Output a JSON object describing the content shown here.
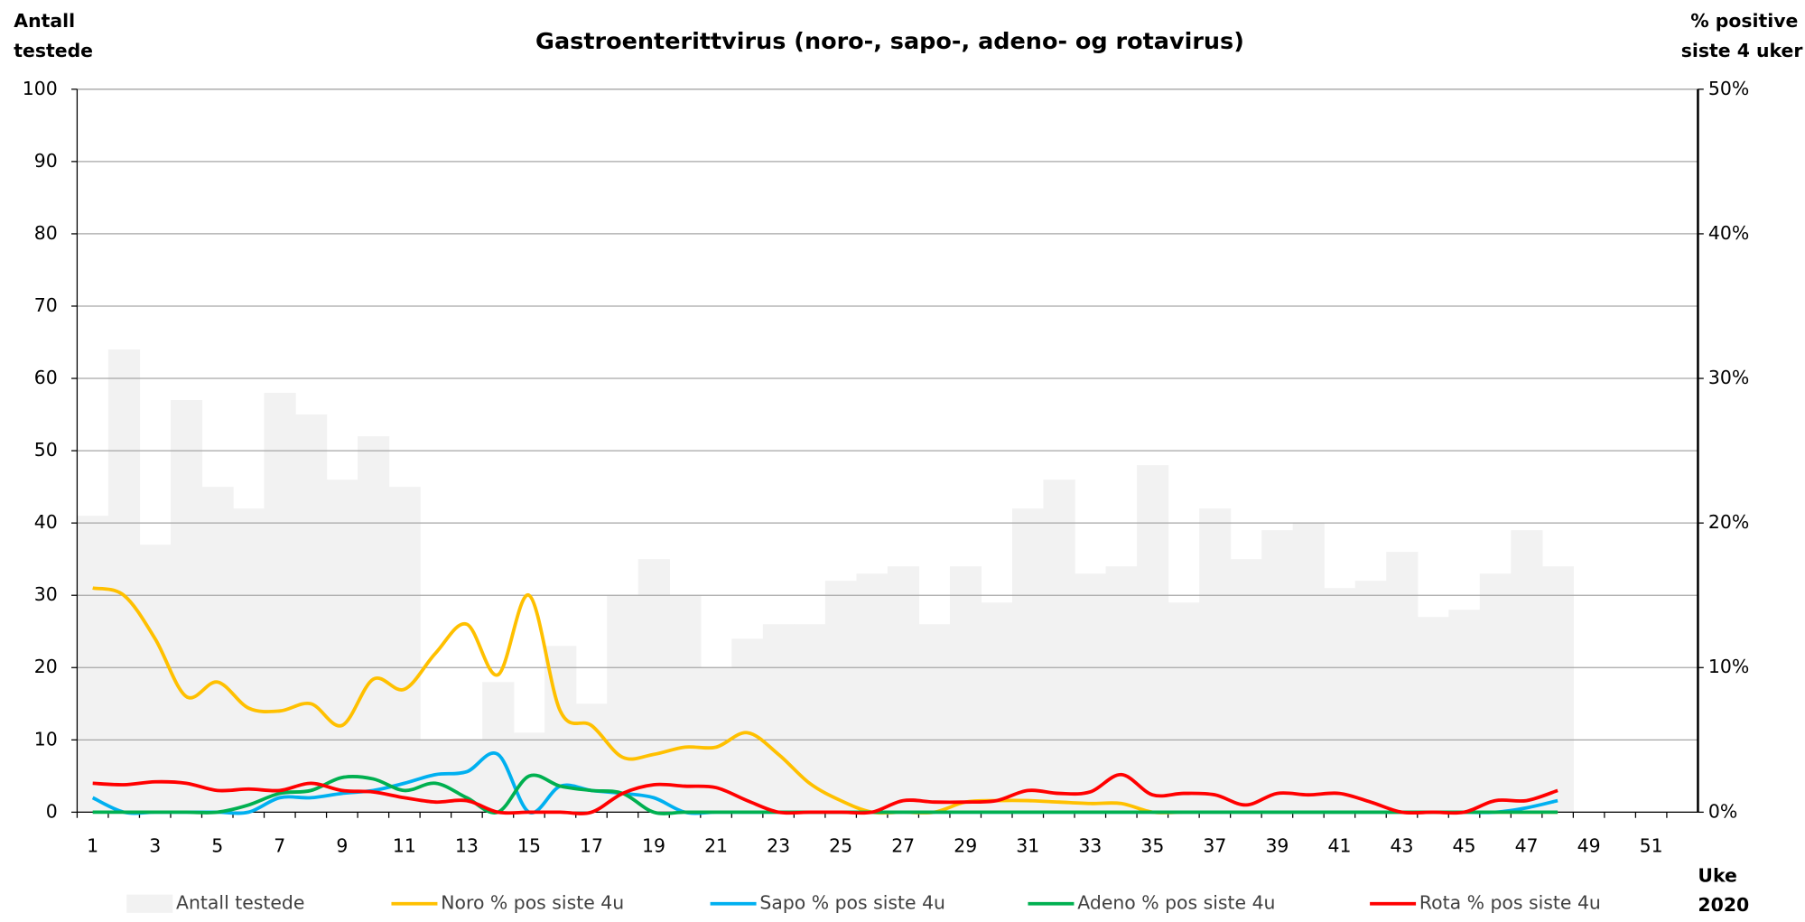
{
  "chart_data": {
    "type": "bar",
    "title": "Gastroenterittvirus (noro-, sapo-, adeno- og rotavirus)",
    "ylabel": [
      "Antall",
      "testede"
    ],
    "y2label": [
      "% positive",
      "siste 4 uker"
    ],
    "xlabel": [
      "Uke",
      "2020"
    ],
    "categories": [
      1,
      null,
      3,
      null,
      5,
      null,
      7,
      null,
      9,
      null,
      11,
      null,
      13,
      null,
      15,
      null,
      17,
      null,
      19,
      null,
      21,
      null,
      23,
      null,
      25,
      null,
      27,
      null,
      29,
      null,
      31,
      null,
      33,
      null,
      35,
      null,
      37,
      null,
      39,
      null,
      41,
      null,
      43,
      null,
      45,
      null,
      47,
      null,
      49,
      null,
      51,
      null
    ],
    "ylim": [
      0,
      100
    ],
    "yticks": [
      0,
      10,
      20,
      30,
      40,
      50,
      60,
      70,
      80,
      90,
      100
    ],
    "y2lim": [
      0,
      50
    ],
    "y2ticks": [
      {
        "value": 0,
        "label": "0%"
      },
      {
        "value": 10,
        "label": "10%"
      },
      {
        "value": 20,
        "label": "20%"
      },
      {
        "value": 30,
        "label": "30%"
      },
      {
        "value": 40,
        "label": "40%"
      },
      {
        "value": 50,
        "label": "50%"
      }
    ],
    "grid": true,
    "series": [
      {
        "name": "Antall testede",
        "type": "bar",
        "color": "#f2f2f2",
        "values": [
          41,
          64,
          37,
          57,
          45,
          42,
          58,
          55,
          46,
          52,
          45,
          10,
          10,
          18,
          11,
          23,
          15,
          30,
          35,
          30,
          20,
          24,
          26,
          26,
          32,
          33,
          34,
          26,
          34,
          29,
          42,
          46,
          33,
          34,
          48,
          29,
          42,
          35,
          39,
          40,
          31,
          32,
          36,
          27,
          28,
          33,
          39,
          34,
          null,
          null,
          null,
          null
        ]
      },
      {
        "name": "Noro % pos siste 4u",
        "type": "line",
        "axis": "y2",
        "color": "#ffc000",
        "values": [
          15.5,
          15,
          12,
          8,
          9,
          7.2,
          7,
          7.5,
          6,
          9.2,
          8.5,
          11,
          13,
          9.5,
          15,
          7,
          6,
          3.8,
          4,
          4.5,
          4.5,
          5.5,
          4,
          2,
          0.8,
          0,
          0,
          0,
          0.7,
          0.8,
          0.8,
          0.7,
          0.6,
          0.6,
          0,
          0,
          0,
          0,
          0,
          0,
          0,
          0,
          0,
          0,
          0,
          0,
          0,
          0,
          null,
          null,
          null,
          null
        ]
      },
      {
        "name": "Sapo % pos siste 4u",
        "type": "line",
        "axis": "y2",
        "color": "#00b0f0",
        "values": [
          1,
          0,
          0,
          0,
          0,
          0,
          1,
          1,
          1.3,
          1.5,
          2,
          2.6,
          2.8,
          4,
          0,
          1.8,
          1.5,
          1.3,
          1,
          0,
          0,
          0,
          0,
          0,
          0,
          0,
          0,
          0,
          0,
          0,
          0,
          0,
          0,
          0,
          0,
          0,
          0,
          0,
          0,
          0,
          0,
          0,
          0,
          0,
          0,
          0,
          0.3,
          0.8,
          null,
          null,
          null,
          null
        ]
      },
      {
        "name": "Adeno % pos siste 4u",
        "type": "line",
        "axis": "y2",
        "color": "#00b050",
        "values": [
          0,
          0,
          0,
          0,
          0,
          0.5,
          1.3,
          1.5,
          2.4,
          2.3,
          1.5,
          2,
          1,
          0,
          2.5,
          1.8,
          1.5,
          1.3,
          0,
          0,
          0,
          0,
          0,
          0,
          0,
          0,
          0,
          0,
          0,
          0,
          0,
          0,
          0,
          0,
          0,
          0,
          0,
          0,
          0,
          0,
          0,
          0,
          0,
          0,
          0,
          0,
          0,
          0,
          null,
          null,
          null,
          null
        ]
      },
      {
        "name": "Rota % pos siste 4u",
        "type": "line",
        "axis": "y2",
        "color": "#ff0000",
        "values": [
          2,
          1.9,
          2.1,
          2,
          1.5,
          1.6,
          1.5,
          2,
          1.5,
          1.4,
          1,
          0.7,
          0.8,
          0,
          0,
          0,
          0,
          1.3,
          1.9,
          1.8,
          1.7,
          0.8,
          0,
          0,
          0,
          0,
          0.8,
          0.7,
          0.7,
          0.8,
          1.5,
          1.3,
          1.4,
          2.6,
          1.2,
          1.3,
          1.2,
          0.5,
          1.3,
          1.2,
          1.3,
          0.7,
          0,
          0,
          0,
          0.8,
          0.8,
          1.5,
          null,
          null,
          null,
          null
        ]
      }
    ]
  }
}
